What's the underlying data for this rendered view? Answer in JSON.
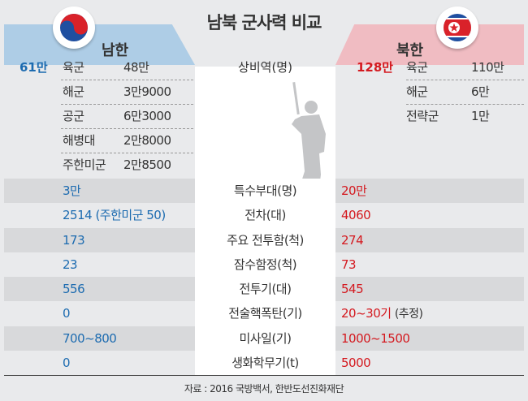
{
  "title": "남북 군사력 비교",
  "south": {
    "label": "남한",
    "color": "#1c6bb0",
    "flag": "south-korea-flag"
  },
  "north": {
    "label": "북한",
    "color": "#d4191f",
    "flag": "north-korea-flag"
  },
  "active_duty": {
    "label": "상비역(명)",
    "south_total": "61만",
    "south_items": [
      {
        "name": "육군",
        "value": "48만"
      },
      {
        "name": "해군",
        "value": "3만9000"
      },
      {
        "name": "공군",
        "value": "6만3000"
      },
      {
        "name": "해병대",
        "value": "2만8000"
      },
      {
        "name": "주한미군",
        "value": "2만8500"
      }
    ],
    "north_total": "128만",
    "north_items": [
      {
        "name": "육군",
        "value": "110만"
      },
      {
        "name": "해군",
        "value": "6만"
      },
      {
        "name": "전략군",
        "value": "1만"
      }
    ]
  },
  "rows": [
    {
      "label": "특수부대(명)",
      "south": "3만",
      "north": "20만"
    },
    {
      "label": "전차(대)",
      "south": "2514 (주한미군 50)",
      "north": "4060"
    },
    {
      "label": "주요 전투함(척)",
      "south": "173",
      "north": "274"
    },
    {
      "label": "잠수함정(척)",
      "south": "23",
      "north": "73"
    },
    {
      "label": "전투기(대)",
      "south": "556",
      "north": "545"
    },
    {
      "label": "전술핵폭탄(기)",
      "south": "0",
      "north": "20~30기",
      "north_note": "(추정)"
    },
    {
      "label": "미사일(기)",
      "south": "700~800",
      "north": "1000~1500"
    },
    {
      "label": "생화학무기(t)",
      "south": "0",
      "north": "5000"
    }
  ],
  "source": "자료 : 2016 국방백서, 한반도선진화재단"
}
